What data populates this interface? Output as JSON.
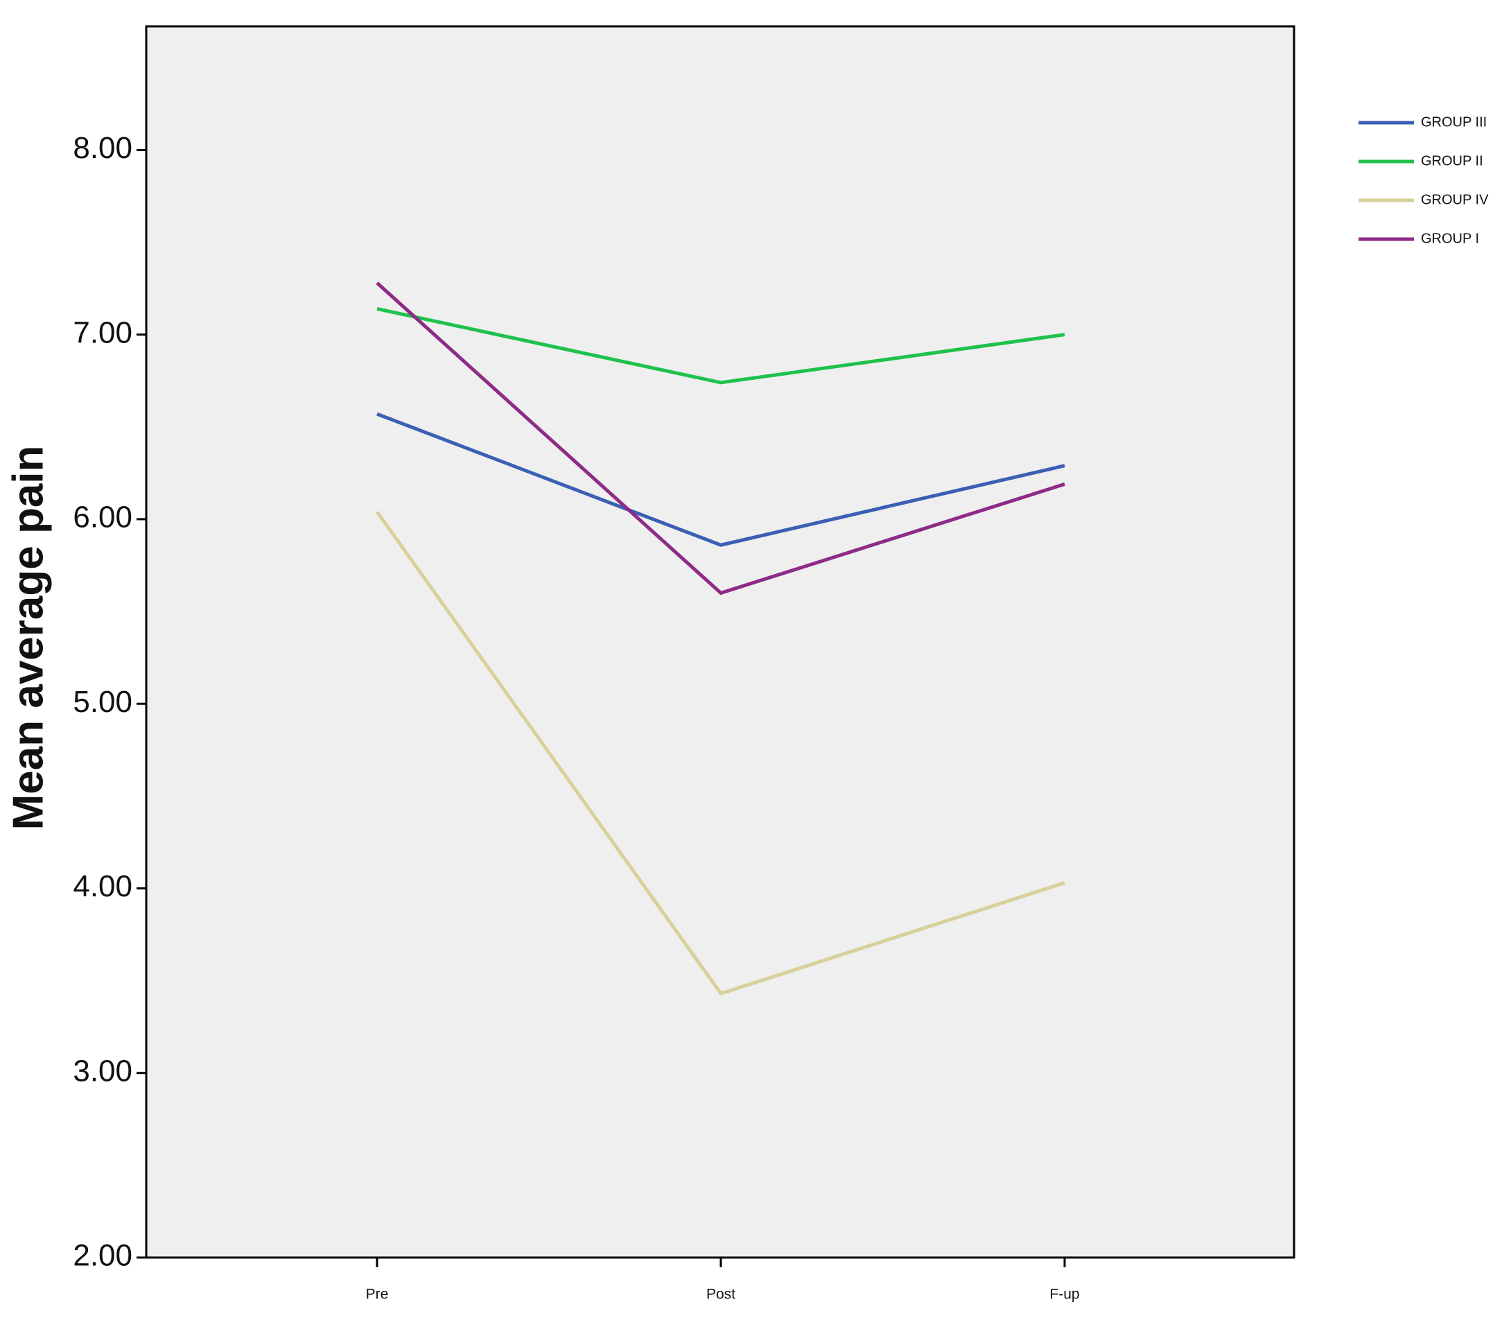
{
  "chart_data": {
    "type": "line",
    "y_label": "Mean average pain",
    "categories": [
      "Pre",
      "Post",
      "F-up"
    ],
    "series": [
      {
        "name": "GROUP III",
        "color": "#3a5fb5",
        "values": [
          6.57,
          5.86,
          6.29
        ]
      },
      {
        "name": "GROUP II",
        "color": "#1ec24a",
        "values": [
          7.14,
          6.74,
          7.0
        ]
      },
      {
        "name": "GROUP IV",
        "color": "#d8d09a",
        "values": [
          6.04,
          3.43,
          4.03
        ]
      },
      {
        "name": "GROUP I",
        "color": "#8e2a87",
        "values": [
          7.28,
          5.6,
          6.19
        ]
      }
    ],
    "ylim": [
      2,
      8.67
    ],
    "yticks": [
      {
        "value": 2,
        "label": "2.00"
      },
      {
        "value": 3,
        "label": "3.00"
      },
      {
        "value": 4,
        "label": "4.00"
      },
      {
        "value": 5,
        "label": "5.00"
      },
      {
        "value": 6,
        "label": "6.00"
      },
      {
        "value": 7,
        "label": "7.00"
      },
      {
        "value": 8,
        "label": "8.00"
      }
    ],
    "background": "#efefef"
  }
}
